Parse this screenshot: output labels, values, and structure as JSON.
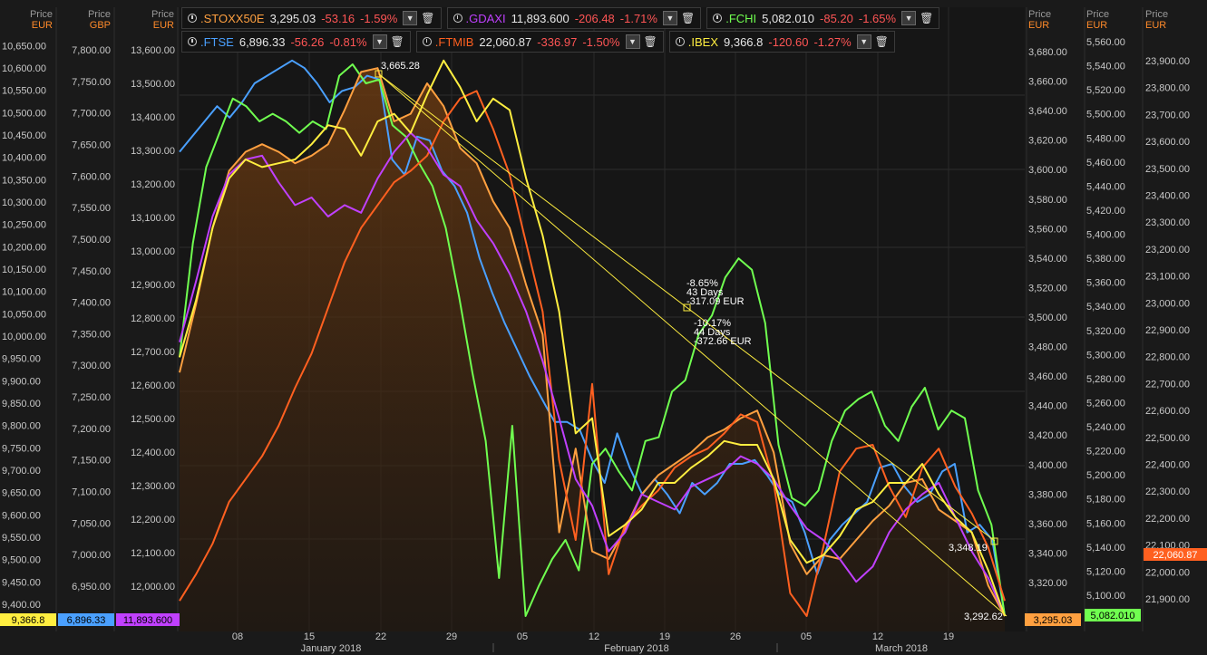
{
  "legend": [
    [
      {
        "symbol": ".STOXX50E",
        "value": "3,295.03",
        "change": "-53.16",
        "pct": "-1.59%",
        "color": "#ffa040",
        "icon": "trash-icon"
      },
      {
        "symbol": ".GDAXI",
        "value": "11,893.600",
        "change": "-206.48",
        "pct": "-1.71%",
        "color": "#c040ff",
        "icon": "trash-icon"
      },
      {
        "symbol": ".FCHI",
        "value": "5,082.010",
        "change": "-85.20",
        "pct": "-1.65%",
        "color": "#70ff50",
        "icon": "trash-icon"
      }
    ],
    [
      {
        "symbol": ".FTSE",
        "value": "6,896.33",
        "change": "-56.26",
        "pct": "-0.81%",
        "color": "#4aa0ff",
        "icon": "trash-icon"
      },
      {
        "symbol": ".FTMIB",
        "value": "22,060.87",
        "change": "-336.97",
        "pct": "-1.50%",
        "color": "#ff6020",
        "icon": "trash-icon"
      },
      {
        "symbol": ".IBEX",
        "value": "9,366.8",
        "change": "-120.60",
        "pct": "-1.27%",
        "color": "#ffee40",
        "icon": "trash-icon"
      }
    ]
  ],
  "chart_data": {
    "type": "line",
    "x_ticks": [
      "08",
      "15",
      "22",
      "29",
      "05",
      "12",
      "19",
      "26",
      "05",
      "12",
      "19"
    ],
    "month_labels": [
      "January 2018",
      "February 2018",
      "March 2018"
    ],
    "axes": [
      {
        "id": "ibex",
        "side": "left",
        "header": "Price",
        "currency": "EUR",
        "min": 9400,
        "max": 10650,
        "step": 50,
        "decimals": 2,
        "last": "9,366.8",
        "lastColor": "#ffee40",
        "lastText": "#000"
      },
      {
        "id": "ftse",
        "side": "left",
        "header": "Price",
        "currency": "GBP",
        "min": 6950,
        "max": 7800,
        "step": 50,
        "decimals": 2,
        "last": "6,896.33",
        "lastColor": "#4aa0ff",
        "lastText": "#000"
      },
      {
        "id": "gdaxi",
        "side": "left",
        "header": "Price",
        "currency": "EUR",
        "min": 12000,
        "max": 13600,
        "step": 100,
        "decimals": 2,
        "last": "11,893.600",
        "lastColor": "#c040ff",
        "lastText": "#000"
      },
      {
        "id": "stoxx",
        "side": "right",
        "header": "Price",
        "currency": "EUR",
        "min": 3320,
        "max": 3680,
        "step": 20,
        "decimals": 2,
        "last": "3,295.03",
        "lastColor": "#ffa040",
        "lastText": "#000"
      },
      {
        "id": "fchi",
        "side": "right",
        "header": "Price",
        "currency": "EUR",
        "min": 5100,
        "max": 5560,
        "step": 20,
        "decimals": 2,
        "last": "5,082.010",
        "lastColor": "#70ff50",
        "lastText": "#000"
      },
      {
        "id": "ftmib",
        "side": "right",
        "header": "Price",
        "currency": "EUR",
        "min": 21900,
        "max": 23900,
        "step": 100,
        "decimals": 2,
        "last": "22,060.87",
        "lastColor": "#ff6020",
        "lastText": "#fff"
      }
    ],
    "series": [
      {
        "name": ".FTSE",
        "color": "#4aa0ff",
        "values": [
          0.72,
          0.76,
          0.8,
          0.84,
          0.81,
          0.85,
          0.9,
          0.92,
          0.94,
          0.96,
          0.94,
          0.9,
          0.85,
          0.88,
          0.89,
          0.92,
          0.91,
          0.7,
          0.66,
          0.76,
          0.75,
          0.67,
          0.63,
          0.56,
          0.44,
          0.35,
          0.27,
          0.2,
          0.13,
          0.07,
          0.01,
          0.01,
          -0.01,
          -0.09,
          -0.15,
          -0.02,
          -0.11,
          -0.18,
          -0.14,
          -0.18,
          -0.23,
          -0.15,
          -0.18,
          -0.15,
          -0.1,
          -0.1,
          -0.09,
          -0.13,
          -0.18,
          -0.2,
          -0.28,
          -0.39,
          -0.3,
          -0.26,
          -0.23,
          -0.2,
          -0.11,
          -0.1,
          -0.16,
          -0.2,
          -0.18,
          -0.12,
          -0.1,
          -0.28,
          -0.26,
          -0.3,
          -0.5
        ]
      },
      {
        "name": ".FCHI",
        "color": "#70ff50",
        "values": [
          0.18,
          0.48,
          0.68,
          0.77,
          0.86,
          0.84,
          0.8,
          0.82,
          0.8,
          0.77,
          0.8,
          0.78,
          0.92,
          0.95,
          0.9,
          0.91,
          0.79,
          0.76,
          0.69,
          0.63,
          0.52,
          0.34,
          0.14,
          -0.04,
          -0.4,
          0.0,
          -0.5,
          -0.42,
          -0.35,
          -0.3,
          -0.38,
          -0.1,
          -0.06,
          -0.12,
          -0.17,
          -0.04,
          -0.03,
          0.09,
          0.12,
          0.24,
          0.29,
          0.39,
          0.44,
          0.41,
          0.27,
          -0.05,
          -0.19,
          -0.21,
          -0.17,
          -0.04,
          0.04,
          0.07,
          0.09,
          0.0,
          -0.04,
          0.05,
          0.1,
          -0.01,
          0.04,
          0.02,
          -0.17,
          -0.26,
          -0.5
        ]
      },
      {
        "name": ".STOXX50E",
        "color": "#ffa040",
        "values": [
          0.14,
          0.32,
          0.52,
          0.67,
          0.72,
          0.74,
          0.72,
          0.69,
          0.71,
          0.74,
          0.83,
          0.93,
          0.94,
          0.8,
          0.82,
          0.9,
          0.84,
          0.73,
          0.69,
          0.59,
          0.52,
          0.37,
          0.24,
          -0.28,
          -0.06,
          -0.33,
          -0.35,
          -0.27,
          -0.18,
          -0.13,
          -0.1,
          -0.07,
          -0.03,
          -0.01,
          0.02,
          0.04,
          -0.07,
          -0.31,
          -0.39,
          -0.34,
          -0.35,
          -0.3,
          -0.25,
          -0.21,
          -0.15,
          -0.14,
          -0.22,
          -0.25,
          -0.28,
          -0.42,
          -0.5
        ]
      },
      {
        "name": ".FTMIB",
        "color": "#ff6020",
        "values": [
          -0.46,
          -0.39,
          -0.31,
          -0.2,
          -0.14,
          -0.08,
          0.0,
          0.1,
          0.19,
          0.31,
          0.43,
          0.52,
          0.58,
          0.64,
          0.67,
          0.71,
          0.8,
          0.86,
          0.88,
          0.78,
          0.66,
          0.48,
          0.3,
          -0.09,
          -0.3,
          0.11,
          -0.39,
          -0.26,
          -0.21,
          -0.17,
          -0.11,
          -0.08,
          -0.06,
          -0.02,
          0.03,
          0.01,
          -0.15,
          -0.44,
          -0.5,
          -0.32,
          -0.12,
          -0.06,
          -0.05,
          -0.16,
          -0.24,
          -0.11,
          -0.06,
          -0.16,
          -0.23,
          -0.32,
          -0.46
        ]
      },
      {
        "name": ".GDAXI",
        "color": "#c040ff",
        "values": [
          0.22,
          0.38,
          0.55,
          0.66,
          0.7,
          0.71,
          0.64,
          0.58,
          0.6,
          0.55,
          0.58,
          0.56,
          0.65,
          0.72,
          0.77,
          0.73,
          0.66,
          0.63,
          0.54,
          0.48,
          0.4,
          0.3,
          0.17,
          0.02,
          -0.14,
          -0.21,
          -0.33,
          -0.28,
          -0.18,
          -0.2,
          -0.22,
          -0.16,
          -0.14,
          -0.12,
          -0.08,
          -0.1,
          -0.14,
          -0.21,
          -0.27,
          -0.3,
          -0.35,
          -0.41,
          -0.37,
          -0.28,
          -0.22,
          -0.18,
          -0.15,
          -0.24,
          -0.33,
          -0.4,
          -0.5
        ]
      },
      {
        "name": ".IBEX",
        "color": "#ffee40",
        "values": [
          0.18,
          0.33,
          0.52,
          0.65,
          0.7,
          0.68,
          0.69,
          0.7,
          0.74,
          0.79,
          0.78,
          0.71,
          0.8,
          0.82,
          0.77,
          0.87,
          0.96,
          0.89,
          0.8,
          0.86,
          0.83,
          0.65,
          0.5,
          0.3,
          -0.02,
          0.02,
          -0.29,
          -0.26,
          -0.22,
          -0.15,
          -0.15,
          -0.11,
          -0.08,
          -0.04,
          -0.05,
          -0.05,
          -0.14,
          -0.3,
          -0.36,
          -0.34,
          -0.29,
          -0.22,
          -0.2,
          -0.15,
          -0.15,
          -0.1,
          -0.18,
          -0.24,
          -0.28,
          -0.38,
          -0.5
        ]
      }
    ],
    "annotations": {
      "peak": "3,665.28",
      "box1": [
        "-8.65%",
        "43 Days",
        "-317.09 EUR"
      ],
      "box2": [
        "-10.17%",
        "44 Days",
        "-372.66 EUR"
      ],
      "end1": "3,348.19",
      "end2": "3,292.62"
    }
  }
}
